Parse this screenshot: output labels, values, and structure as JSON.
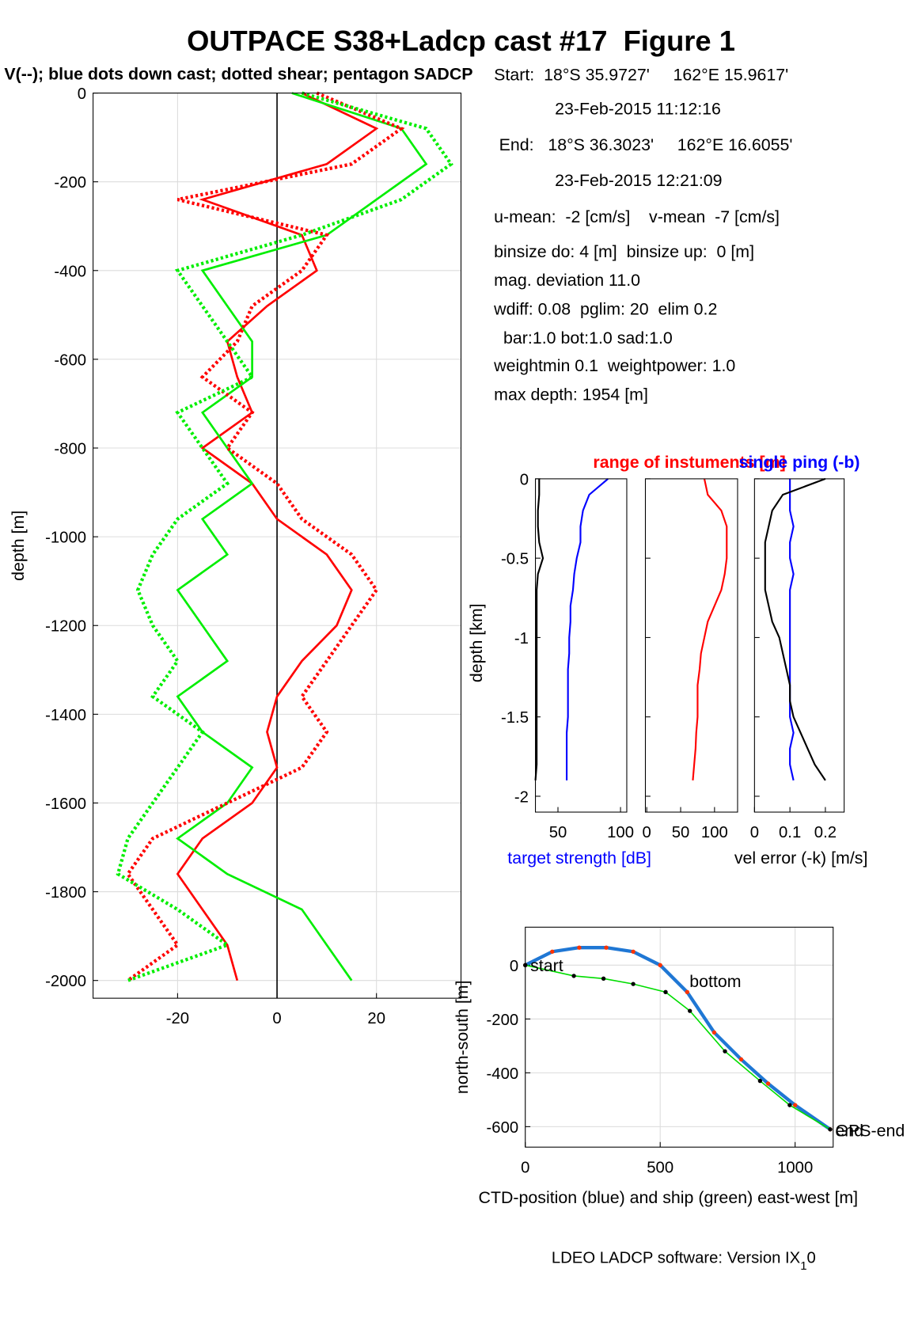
{
  "chart_data": [
    {
      "type": "line",
      "title": "OUTPACE S38+Ladcp cast #17  Figure 1",
      "subtitle": "V(--); blue dots down cast; dotted shear; pentagon SADCP",
      "ylabel": "depth [m]",
      "xlim": [
        -37,
        37
      ],
      "ylim": [
        -2040,
        0
      ],
      "xticks": [
        -20,
        0,
        20
      ],
      "yticks": [
        0,
        -200,
        -400,
        -600,
        -800,
        -1000,
        -1200,
        -1400,
        -1600,
        -1800,
        -2000
      ],
      "grid": true,
      "depth": [
        0,
        -80,
        -160,
        -240,
        -320,
        -400,
        -480,
        -560,
        -640,
        -720,
        -800,
        -880,
        -960,
        -1040,
        -1120,
        -1200,
        -1280,
        -1360,
        -1440,
        -1520,
        -1600,
        -1680,
        -1760,
        -1840,
        -1920,
        -2000
      ],
      "series": [
        {
          "color": "#ff0000",
          "style": "solid",
          "values": [
            5,
            20,
            10,
            -15,
            5,
            8,
            -2,
            -10,
            -8,
            -5,
            -15,
            -5,
            0,
            10,
            15,
            12,
            5,
            0,
            -2,
            0,
            -5,
            -15,
            -20,
            -15,
            -10,
            -8
          ]
        },
        {
          "color": "#00ee00",
          "style": "solid",
          "values": [
            3,
            25,
            30,
            20,
            10,
            -15,
            -10,
            -5,
            -5,
            -15,
            -10,
            -5,
            -15,
            -10,
            -20,
            -15,
            -10,
            -20,
            -15,
            -5,
            -10,
            -20,
            -10,
            5,
            10,
            15
          ]
        },
        {
          "color": "#ff0000",
          "style": "dotted",
          "values": [
            8,
            25,
            15,
            -20,
            10,
            5,
            -5,
            -8,
            -15,
            -5,
            -10,
            0,
            5,
            15,
            20,
            15,
            10,
            5,
            10,
            5,
            -10,
            -25,
            -30,
            -25,
            -20,
            -30
          ]
        },
        {
          "color": "#00ee00",
          "style": "dotted",
          "values": [
            5,
            30,
            35,
            25,
            5,
            -20,
            -15,
            -10,
            -5,
            -20,
            -15,
            -10,
            -20,
            -25,
            -28,
            -25,
            -20,
            -25,
            -15,
            -20,
            -25,
            -30,
            -32,
            -20,
            -10,
            -30
          ]
        }
      ]
    },
    {
      "type": "multi-line",
      "ylabel": "depth [km]",
      "ylim": [
        -2.1,
        0
      ],
      "yticks": [
        0,
        -0.5,
        -1,
        -1.5,
        -2
      ],
      "titles": [
        {
          "text": "range of instuments [m]",
          "color": "#ff0000"
        },
        {
          "text": "single ping (-b)",
          "color": "#0000ff"
        }
      ],
      "xlabels": [
        {
          "text": "target strength [dB]",
          "color": "#0000ff"
        },
        {
          "text": "vel error (-k) [m/s]",
          "color": "#000000"
        }
      ],
      "depth": [
        0,
        -0.1,
        -0.2,
        -0.3,
        -0.4,
        -0.5,
        -0.6,
        -0.7,
        -0.8,
        -0.9,
        -1,
        -1.1,
        -1.2,
        -1.3,
        -1.4,
        -1.5,
        -1.6,
        -1.7,
        -1.8,
        -1.9
      ],
      "subplots": [
        {
          "xlim": [
            32,
            105
          ],
          "xticks": [
            50,
            100
          ],
          "series": [
            {
              "color": "#000000",
              "values": [
                35,
                35,
                34,
                34,
                35,
                38,
                34,
                33,
                33,
                33,
                33,
                33,
                33,
                33,
                33,
                33,
                33,
                33,
                33,
                32
              ]
            },
            {
              "color": "#0000ff",
              "values": [
                90,
                75,
                70,
                68,
                68,
                65,
                63,
                62,
                60,
                60,
                59,
                59,
                58,
                58,
                58,
                58,
                57,
                57,
                57,
                57
              ]
            }
          ]
        },
        {
          "xlim": [
            -2,
            134
          ],
          "xticks": [
            0,
            50,
            100
          ],
          "series": [
            {
              "color": "#ff0000",
              "values": [
                85,
                90,
                110,
                118,
                118,
                118,
                115,
                110,
                100,
                90,
                85,
                80,
                78,
                75,
                75,
                75,
                73,
                72,
                70,
                68
              ]
            }
          ]
        },
        {
          "xlim": [
            0,
            0.253
          ],
          "xticks": [
            0,
            0.1,
            0.2
          ],
          "series": [
            {
              "color": "#0000ff",
              "values": [
                0.1,
                0.1,
                0.1,
                0.11,
                0.1,
                0.1,
                0.11,
                0.1,
                0.1,
                0.1,
                0.1,
                0.1,
                0.1,
                0.1,
                0.1,
                0.1,
                0.11,
                0.1,
                0.1,
                0.11
              ]
            },
            {
              "color": "#000000",
              "values": [
                0.2,
                0.08,
                0.05,
                0.04,
                0.03,
                0.03,
                0.03,
                0.03,
                0.04,
                0.05,
                0.07,
                0.08,
                0.09,
                0.1,
                0.1,
                0.11,
                0.13,
                0.15,
                0.17,
                0.2
              ]
            }
          ]
        }
      ]
    },
    {
      "type": "track",
      "xlabel": "CTD-position (blue) and ship (green) east-west [m]",
      "ylabel": "north-south [m]",
      "xlim": [
        0,
        1141
      ],
      "ylim": [
        -676,
        141
      ],
      "xticks": [
        0,
        500,
        1000
      ],
      "yticks": [
        0,
        -200,
        -400,
        -600
      ],
      "grid": true,
      "series": [
        {
          "color": "#1f77d4",
          "x": [
            0,
            100,
            200,
            300,
            400,
            500,
            600,
            700,
            800,
            900,
            1000,
            1130
          ],
          "values": [
            0,
            50,
            65,
            65,
            50,
            0,
            -100,
            -250,
            -350,
            -440,
            -520,
            -610
          ]
        },
        {
          "color": "#00dd00",
          "x": [
            0,
            180,
            290,
            400,
            520,
            610,
            740,
            870,
            980,
            1130
          ],
          "values": [
            0,
            -40,
            -50,
            -70,
            -100,
            -170,
            -320,
            -430,
            -520,
            -610
          ]
        }
      ],
      "annotations": [
        {
          "text": "start",
          "x": 0,
          "y": 0
        },
        {
          "text": "bottom",
          "x": 590,
          "y": -50
        },
        {
          "text": "GPS-end",
          "x": 1130,
          "y": -610
        },
        {
          "text": "end",
          "x": 1130,
          "y": -610
        }
      ]
    }
  ],
  "info": [
    "Start:  18°S 35.9727'     162°E 15.9617'",
    "23-Feb-2015 11:12:16",
    "End:   18°S 36.3023'     162°E 16.6055'",
    "23-Feb-2015 12:21:09",
    "u-mean:  -2 [cm/s]    v-mean  -7 [cm/s]",
    "binsize do: 4 [m]  binsize up:  0 [m]",
    "mag. deviation 11.0",
    "wdiff: 0.08  pglim: 20  elim 0.2",
    "  bar:1.0 bot:1.0 sad:1.0",
    "weightmin 0.1  weightpower: 1.0",
    "max depth: 1954 [m]"
  ],
  "footer": {
    "text": "LDEO LADCP software: Version IX",
    "sub": "1",
    "after": "0"
  }
}
